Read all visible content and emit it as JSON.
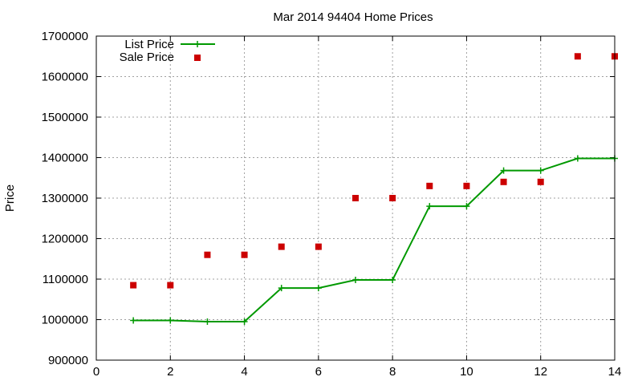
{
  "chart_data": {
    "type": "line",
    "title": "Mar 2014 94404 Home Prices",
    "xlabel": "",
    "ylabel": "Price",
    "xlim": [
      0,
      14
    ],
    "ylim": [
      900000,
      1700000
    ],
    "x_ticks": [
      "0",
      "2",
      "4",
      "6",
      "8",
      "10",
      "12",
      "14"
    ],
    "y_ticks": [
      "900000",
      "1000000",
      "1100000",
      "1200000",
      "1300000",
      "1400000",
      "1500000",
      "1600000",
      "1700000"
    ],
    "grid": true,
    "legend_position": "top-left",
    "series": [
      {
        "name": "List Price",
        "style": "line-with-plus-markers",
        "color": "#009900",
        "x": [
          1,
          2,
          3,
          4,
          5,
          6,
          7,
          8,
          9,
          10,
          11,
          12,
          13,
          14
        ],
        "values": [
          998000,
          998000,
          995000,
          995000,
          1078000,
          1078000,
          1098000,
          1098000,
          1280000,
          1280000,
          1368000,
          1368000,
          1398000,
          1398000
        ]
      },
      {
        "name": "Sale Price",
        "style": "square-markers",
        "color": "#cc0000",
        "x": [
          1,
          2,
          3,
          4,
          5,
          6,
          7,
          8,
          9,
          10,
          11,
          12,
          13,
          14
        ],
        "values": [
          1085000,
          1085000,
          1160000,
          1160000,
          1180000,
          1180000,
          1300000,
          1300000,
          1330000,
          1330000,
          1340000,
          1340000,
          1650000,
          1650000
        ]
      }
    ]
  }
}
